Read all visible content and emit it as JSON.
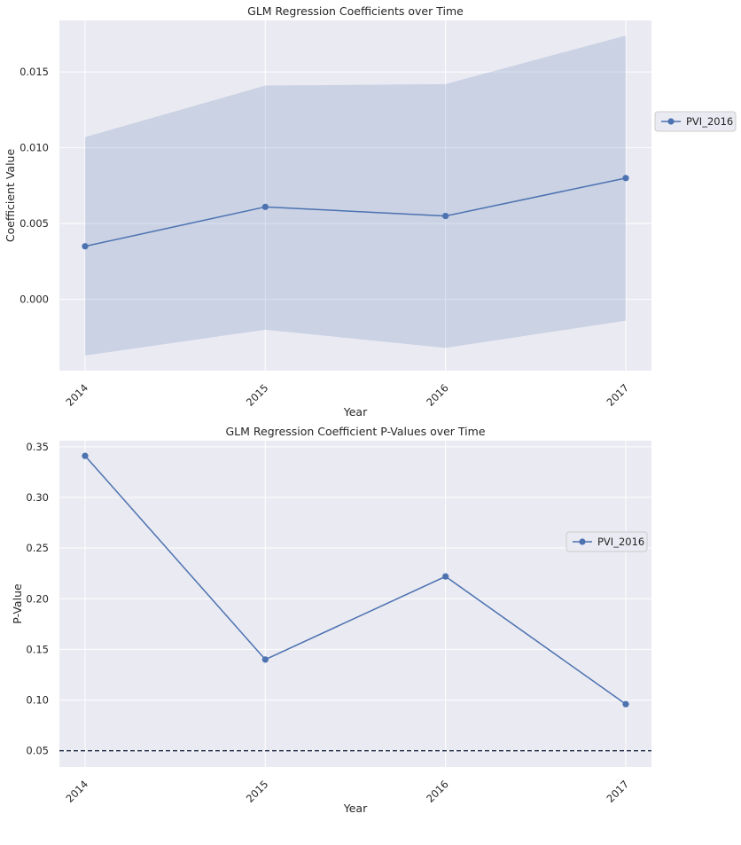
{
  "chart_data": [
    {
      "type": "line",
      "title": "GLM Regression Coefficients over Time",
      "xlabel": "Year",
      "ylabel": "Coefficient Value",
      "categories": [
        "2014",
        "2015",
        "2016",
        "2017"
      ],
      "series": [
        {
          "name": "PVI_2016",
          "values": [
            0.0035,
            0.0061,
            0.0055,
            0.008
          ],
          "ci_lower": [
            -0.0037,
            -0.002,
            -0.0032,
            -0.0014
          ],
          "ci_upper": [
            0.0107,
            0.0141,
            0.0142,
            0.0174
          ]
        }
      ],
      "ylim": [
        -0.0047,
        0.0184
      ],
      "yticks": [
        0.0,
        0.005,
        0.01,
        0.015
      ],
      "ytick_labels": [
        "0.000",
        "0.005",
        "0.010",
        "0.015"
      ],
      "grid": true,
      "legend_position": "outside-right",
      "colors": {
        "line": "#4c72b0",
        "band": "#4c72b0",
        "background": "#eaeaf2"
      }
    },
    {
      "type": "line",
      "title": "GLM Regression Coefficient P-Values over Time",
      "xlabel": "Year",
      "ylabel": "P-Value",
      "categories": [
        "2014",
        "2015",
        "2016",
        "2017"
      ],
      "series": [
        {
          "name": "PVI_2016",
          "values": [
            0.341,
            0.14,
            0.222,
            0.096
          ]
        }
      ],
      "reference_line": {
        "y": 0.05,
        "style": "dashed",
        "color": "#1f2a44"
      },
      "ylim": [
        0.034,
        0.356
      ],
      "yticks": [
        0.05,
        0.1,
        0.15,
        0.2,
        0.25,
        0.3,
        0.35
      ],
      "ytick_labels": [
        "0.05",
        "0.10",
        "0.15",
        "0.20",
        "0.25",
        "0.30",
        "0.35"
      ],
      "grid": true,
      "legend_position": "center-right",
      "colors": {
        "line": "#4c72b0",
        "background": "#eaeaf2"
      }
    }
  ]
}
